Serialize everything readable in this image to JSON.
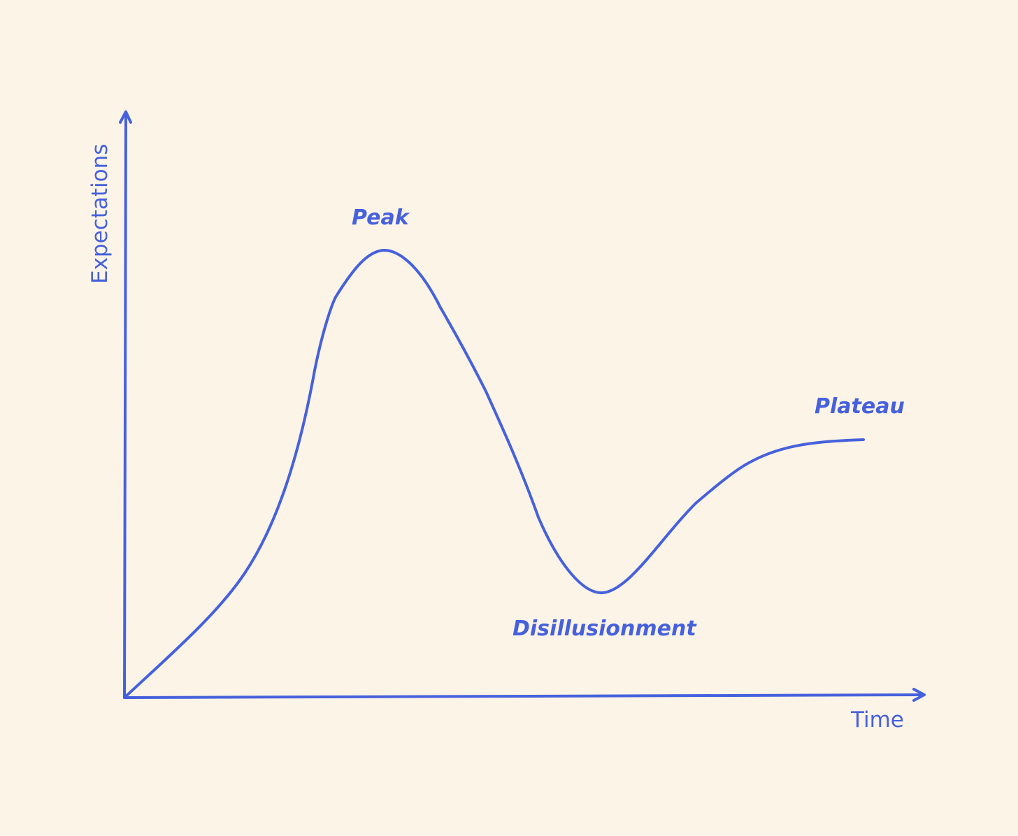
{
  "colors": {
    "background": "#FDF4E8",
    "stroke": "#4661DC"
  },
  "axes": {
    "y_label": "Expectations",
    "x_label": "Time"
  },
  "annotations": {
    "peak": "Peak",
    "trough": "Disillusionment",
    "plateau": "Plateau"
  }
}
